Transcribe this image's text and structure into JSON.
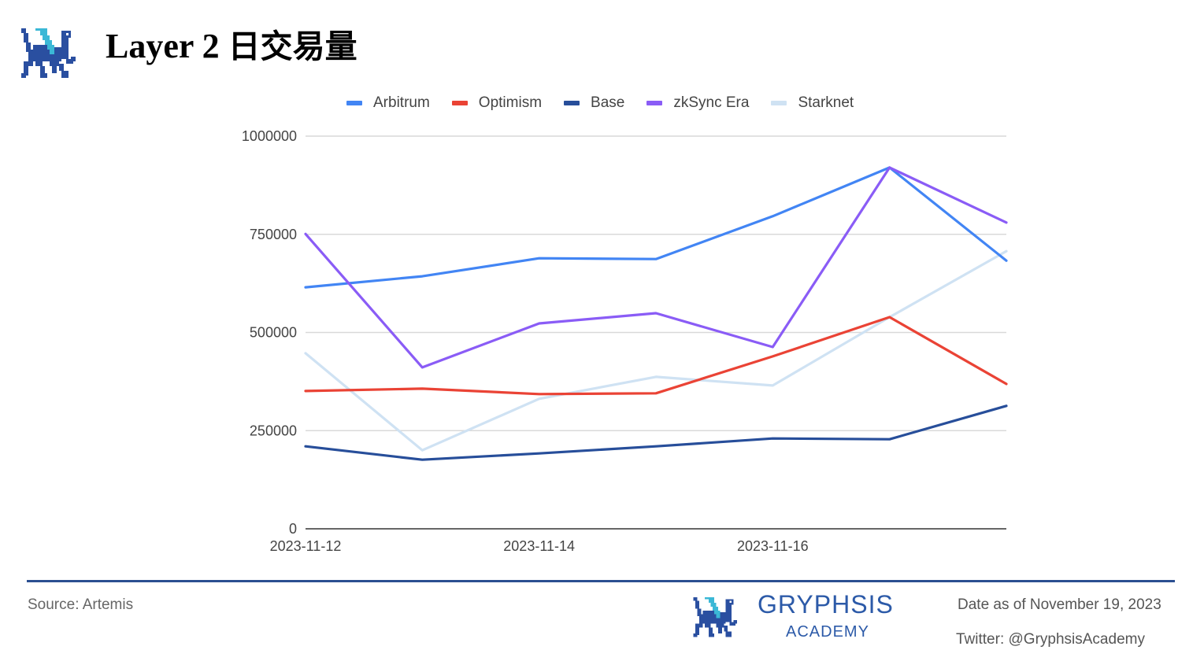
{
  "header": {
    "title_latin": "Layer 2 ",
    "title_cjk": "日交易量",
    "logo_icon": "gryphon-pixel-logo"
  },
  "legend": [
    {
      "label": "Arbitrum",
      "color": "#4285f4"
    },
    {
      "label": "Optimism",
      "color": "#ea4335"
    },
    {
      "label": "Base",
      "color": "#274e9a"
    },
    {
      "label": "zkSync Era",
      "color": "#8a5cf6"
    },
    {
      "label": "Starknet",
      "color": "#cfe2f3"
    }
  ],
  "chart_data": {
    "type": "line",
    "title": "Layer 2 日交易量",
    "xlabel": "",
    "ylabel": "",
    "x": [
      "2023-11-12",
      "2023-11-13",
      "2023-11-14",
      "2023-11-15",
      "2023-11-16",
      "2023-11-17",
      "2023-11-18"
    ],
    "x_tick_labels": [
      "2023-11-12",
      "2023-11-14",
      "2023-11-16"
    ],
    "y_tick_labels": [
      "0",
      "250000",
      "500000",
      "750000",
      "1000000"
    ],
    "ylim": [
      0,
      1000000
    ],
    "grid": true,
    "legend_position": "top",
    "series": [
      {
        "name": "Arbitrum",
        "color": "#4285f4",
        "values": [
          615000,
          643000,
          689000,
          687000,
          796000,
          920000,
          683000
        ]
      },
      {
        "name": "Optimism",
        "color": "#ea4335",
        "values": [
          351000,
          357000,
          343000,
          345000,
          439000,
          539000,
          369000
        ]
      },
      {
        "name": "Base",
        "color": "#274e9a",
        "values": [
          210000,
          176000,
          192000,
          210000,
          230000,
          228000,
          313000
        ]
      },
      {
        "name": "zkSync Era",
        "color": "#8a5cf6",
        "values": [
          751000,
          411000,
          523000,
          549000,
          463000,
          920000,
          780000
        ]
      },
      {
        "name": "Starknet",
        "color": "#cfe2f3",
        "values": [
          447000,
          200000,
          331000,
          387000,
          365000,
          539000,
          707000
        ]
      }
    ]
  },
  "footer": {
    "source": "Source: Artemis",
    "brand_name": "GRYPHSIS",
    "brand_sub": "ACADEMY",
    "date": "Date as of November 19, 2023",
    "twitter": "Twitter: @GryphsisAcademy"
  }
}
